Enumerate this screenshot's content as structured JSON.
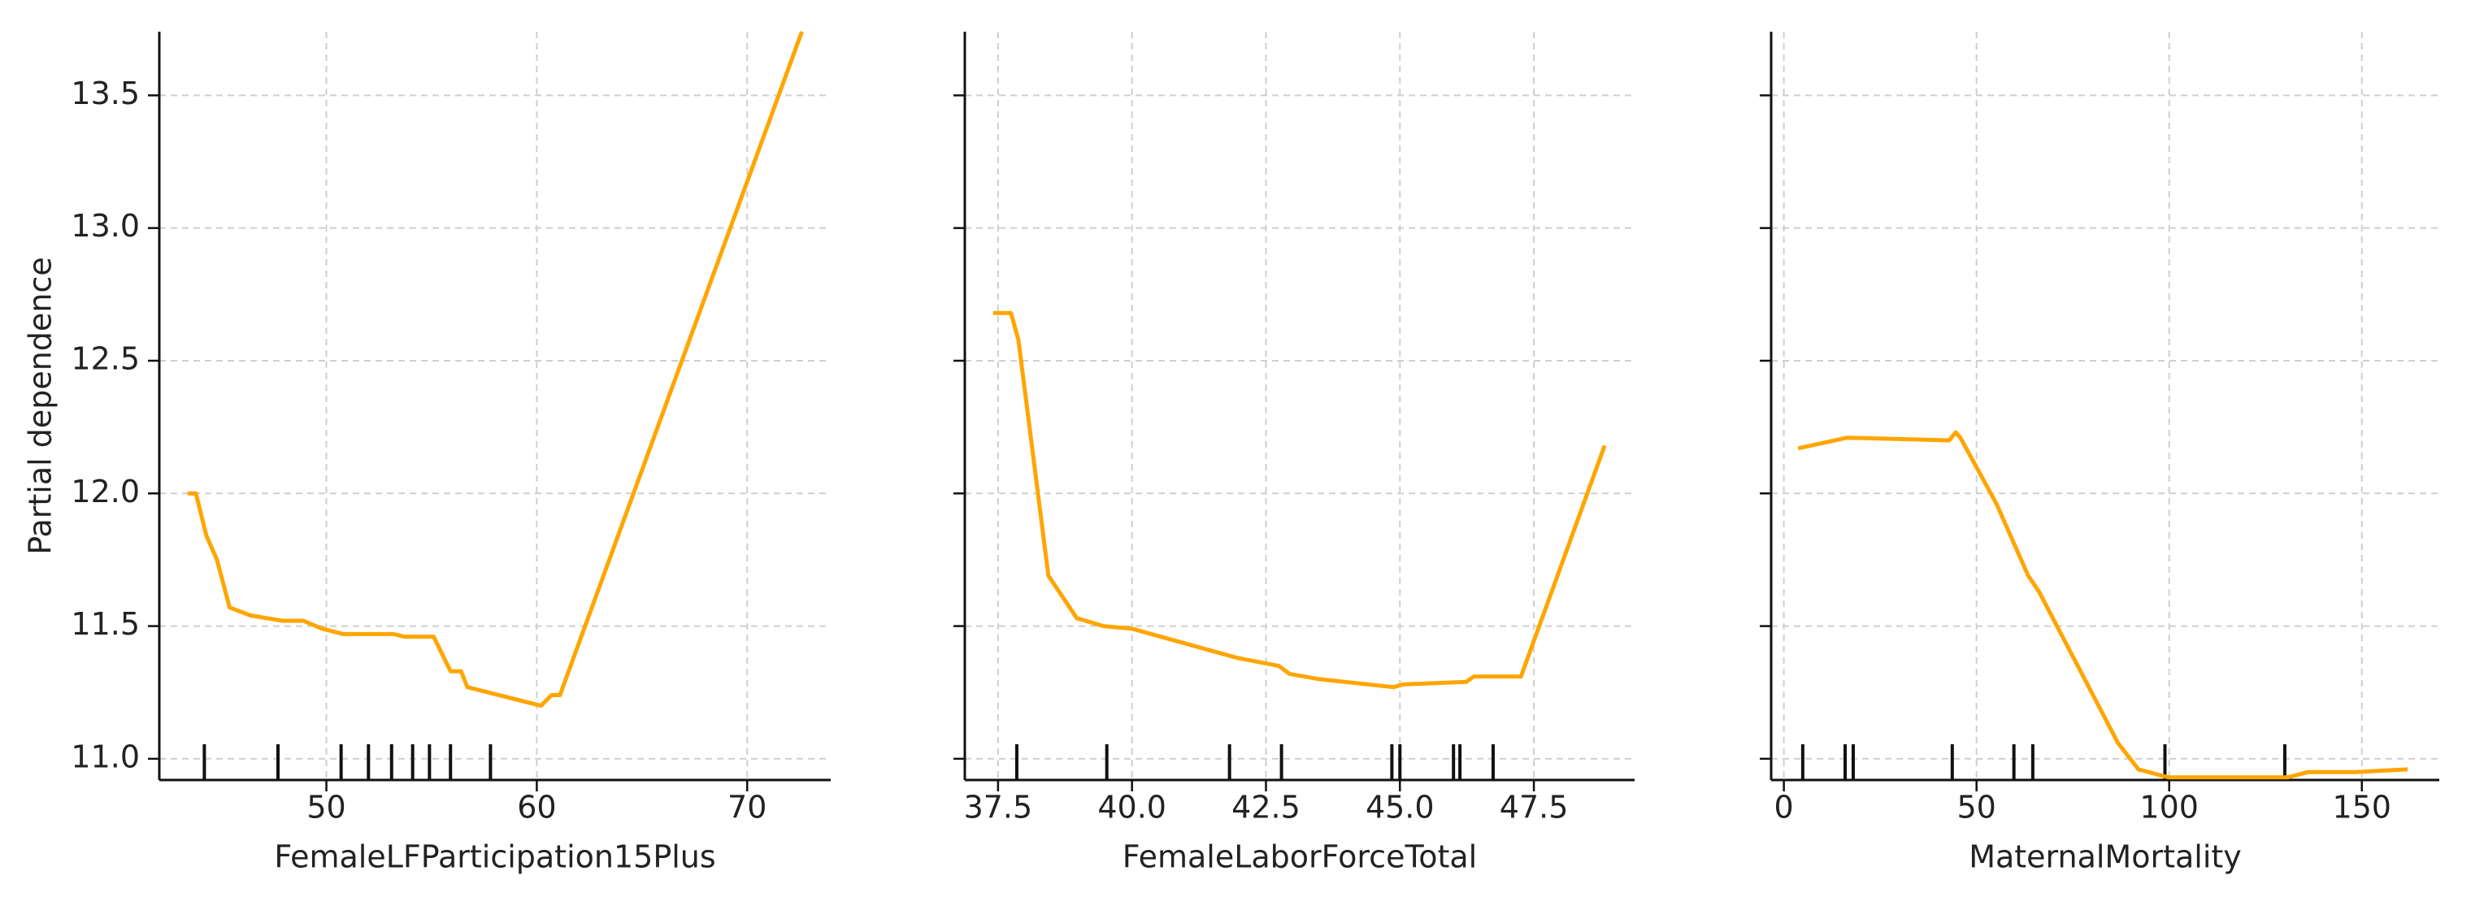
{
  "chart_data": [
    {
      "type": "line",
      "xlabel": "FemaleLFParticipation15Plus",
      "ylabel": "Partial dependence",
      "yticklabels": true,
      "x": [
        43.4,
        43.8,
        44.3,
        44.8,
        45.4,
        46.4,
        47.9,
        48.9,
        49.8,
        50.8,
        53.2,
        53.7,
        55.1,
        55.9,
        56.4,
        56.7,
        60.2,
        60.7,
        61.1,
        72.6
      ],
      "values": [
        12.0,
        12.0,
        11.84,
        11.75,
        11.57,
        11.54,
        11.52,
        11.52,
        11.49,
        11.47,
        11.47,
        11.46,
        11.46,
        11.33,
        11.33,
        11.27,
        11.2,
        11.24,
        11.24,
        13.74
      ],
      "color": "#ffa500",
      "rug": [
        44.2,
        47.7,
        50.7,
        52.0,
        53.1,
        54.1,
        54.9,
        55.9,
        57.8
      ],
      "xlim": [
        42.06,
        73.97
      ],
      "xticks": [
        50,
        60,
        70
      ],
      "ylim": [
        10.92,
        13.74
      ],
      "yticks": [
        {
          "value": 11,
          "label": "11.0"
        },
        11.5,
        {
          "value": 12,
          "label": "12.0"
        },
        12.5,
        {
          "value": 13,
          "label": "13.0"
        },
        13.5
      ],
      "grid": true
    },
    {
      "type": "line",
      "xlabel": "FemaleLaborForceTotal",
      "yticklabels": false,
      "x": [
        37.41,
        37.74,
        37.88,
        38.44,
        38.97,
        39.47,
        40.0,
        41.97,
        42.74,
        42.94,
        43.5,
        44.88,
        45.06,
        46.24,
        46.38,
        47.26,
        48.82
      ],
      "values": [
        12.68,
        12.68,
        12.58,
        11.69,
        11.53,
        11.5,
        11.49,
        11.38,
        11.35,
        11.32,
        11.3,
        11.27,
        11.28,
        11.29,
        11.31,
        11.31,
        12.18
      ],
      "color": "#ffa500",
      "rug": [
        37.85,
        39.53,
        41.82,
        42.79,
        44.85,
        45.0,
        46.0,
        46.12,
        46.74
      ],
      "xlim": [
        36.88,
        49.38
      ],
      "xticks": [
        37.5,
        {
          "value": 40,
          "label": "40.0"
        },
        42.5,
        {
          "value": 45,
          "label": "45.0"
        },
        47.5
      ],
      "ylim": [
        10.92,
        13.74
      ],
      "yticks": [
        {
          "value": 11,
          "label": "11.0"
        },
        11.5,
        {
          "value": 12,
          "label": "12.0"
        },
        12.5,
        {
          "value": 13,
          "label": "13.0"
        },
        13.5
      ],
      "grid": true
    },
    {
      "type": "line",
      "xlabel": "MaternalMortality",
      "yticklabels": false,
      "x": [
        3.7,
        16.4,
        42.9,
        44.6,
        45.8,
        55.2,
        63.4,
        66.2,
        86.7,
        92.0,
        99.8,
        121.8,
        130.8,
        136.1,
        148.4,
        161.9
      ],
      "values": [
        12.17,
        12.21,
        12.2,
        12.23,
        12.21,
        11.96,
        11.69,
        11.63,
        11.06,
        10.96,
        10.93,
        10.93,
        10.93,
        10.95,
        10.95,
        10.96
      ],
      "color": "#ffa500",
      "rug": [
        4.9,
        15.9,
        18.0,
        43.7,
        59.7,
        64.6,
        98.9,
        130.0
      ],
      "xlim": [
        -3.3,
        170.1
      ],
      "xticks": [
        0,
        50,
        100,
        150
      ],
      "ylim": [
        10.92,
        13.74
      ],
      "yticks": [
        {
          "value": 11,
          "label": "11.0"
        },
        11.5,
        {
          "value": 12,
          "label": "12.0"
        },
        12.5,
        {
          "value": 13,
          "label": "13.0"
        },
        13.5
      ],
      "grid": true
    }
  ]
}
